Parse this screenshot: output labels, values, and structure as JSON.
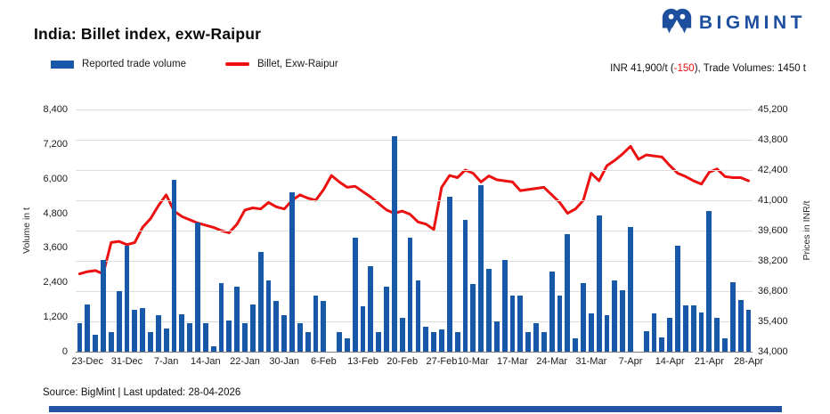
{
  "header": {
    "title": "India: Billet index, exw-Raipur",
    "brand": "BIGMINT"
  },
  "legend": [
    {
      "label": "Reported trade volume",
      "type": "bar"
    },
    {
      "label": "Billet, Exw-Raipur",
      "type": "line"
    }
  ],
  "summary": {
    "price_part": "INR 41,900/t (",
    "change_part": "-150",
    "volume_part": "), Trade Volumes: 1450 t"
  },
  "chart_data": {
    "type": "bar",
    "subtype": "combo bar+line, dual axis",
    "title": "India: Billet index, exw-Raipur",
    "x_labels": [
      "23-Dec",
      "31-Dec",
      "7-Jan",
      "14-Jan",
      "22-Jan",
      "30-Jan",
      "6-Feb",
      "13-Feb",
      "20-Feb",
      "27-Feb",
      "10-Mar",
      "17-Mar",
      "24-Mar",
      "31-Mar",
      "7-Apr",
      "14-Apr",
      "21-Apr",
      "28-Apr"
    ],
    "x_label_slots": [
      2,
      7,
      12,
      17,
      22,
      27,
      32,
      37,
      42,
      47,
      51,
      56,
      61,
      66,
      71,
      76,
      81,
      86
    ],
    "left_axis": {
      "title": "Volume in t",
      "min": 0,
      "max": 8400,
      "step": 1200,
      "ticks": [
        "0",
        "1,200",
        "2,400",
        "3,600",
        "4,800",
        "6,000",
        "7,200",
        "8,400"
      ]
    },
    "right_axis": {
      "title": "Prices in INR/t",
      "min": 34000,
      "max": 45200,
      "step": 1400,
      "ticks": [
        "34,000",
        "35,400",
        "36,800",
        "38,200",
        "39,600",
        "41,000",
        "42,400",
        "43,800",
        "45,200"
      ]
    },
    "grid": "horizontal gridlines at right-axis ticks",
    "legend_position": "top-left",
    "series": [
      {
        "name": "Reported trade volume",
        "type": "bar",
        "axis": "left",
        "color": "#1758a8",
        "values": [
          1000,
          1650,
          590,
          3190,
          690,
          2090,
          3670,
          1440,
          1510,
          690,
          1260,
          790,
          5970,
          1290,
          1000,
          4480,
          1000,
          190,
          2390,
          1080,
          2260,
          1000,
          1650,
          3450,
          2470,
          1770,
          1260,
          5540,
          980,
          670,
          1960,
          1770,
          0,
          670,
          460,
          3960,
          1570,
          2950,
          690,
          2260,
          7460,
          1180,
          3960,
          2470,
          850,
          670,
          770,
          5370,
          690,
          4580,
          2350,
          5780,
          2880,
          1050,
          3190,
          1960,
          1960,
          670,
          980,
          670,
          2780,
          1960,
          4090,
          460,
          2390,
          1340,
          4730,
          1260,
          2470,
          2140,
          4320,
          0,
          700,
          1340,
          480,
          1180,
          3670,
          1600,
          1620,
          1370,
          4890,
          1160,
          460,
          2420,
          1800,
          1450
        ]
      },
      {
        "name": "Billet, Exw-Raipur",
        "type": "line",
        "axis": "right",
        "color": "#ec1010",
        "values": [
          37600,
          37700,
          37750,
          37600,
          39050,
          39100,
          38950,
          39050,
          39750,
          40150,
          40750,
          41250,
          40500,
          40250,
          40100,
          39950,
          39850,
          39750,
          39600,
          39500,
          39900,
          40550,
          40650,
          40600,
          40900,
          40700,
          40600,
          41000,
          41250,
          41100,
          41000,
          41500,
          42150,
          41850,
          41600,
          41650,
          41400,
          41150,
          40850,
          40550,
          40400,
          40500,
          40350,
          40000,
          39900,
          39650,
          41600,
          42150,
          42050,
          42400,
          42250,
          41850,
          42130,
          41950,
          41900,
          41850,
          41450,
          41500,
          41550,
          41600,
          41250,
          40900,
          40400,
          40600,
          41000,
          42250,
          41900,
          42600,
          42850,
          43150,
          43500,
          42900,
          43100,
          43050,
          43000,
          42600,
          42250,
          42100,
          41900,
          41750,
          42300,
          42450,
          42100,
          42050,
          42050,
          41900
        ]
      }
    ]
  },
  "footer": {
    "source": "Source: BigMint | Last updated: 28-04-2026"
  },
  "colors": {
    "bar": "#1758a8",
    "line": "#ec1010",
    "negative": "#e8100c",
    "brand": "#1d4f9e",
    "grid": "#dcdcdc",
    "footer_bar": "#2152a3"
  }
}
